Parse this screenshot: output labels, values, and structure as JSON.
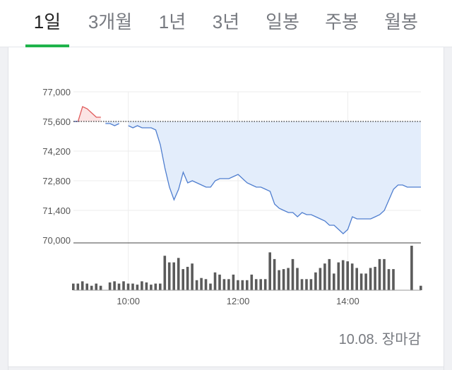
{
  "tabs": [
    {
      "label": "1일",
      "active": true
    },
    {
      "label": "3개월",
      "active": false
    },
    {
      "label": "1년",
      "active": false
    },
    {
      "label": "3년",
      "active": false
    },
    {
      "label": "일봉",
      "active": false
    },
    {
      "label": "주봉",
      "active": false
    },
    {
      "label": "월봉",
      "active": false
    }
  ],
  "footer": {
    "date": "10.08.",
    "status": "장마감"
  },
  "colors": {
    "accent": "#1fb34b",
    "up_line": "#e05a5a",
    "up_fill": "#fbe4e4",
    "down_line": "#4f7ecf",
    "down_fill": "#e3edfb",
    "volume": "#5b5b5b",
    "reference_line": "#333333"
  },
  "chart_data": {
    "type": "line",
    "price": {
      "y_ticks": [
        70000,
        71400,
        72800,
        74200,
        75600,
        77000
      ],
      "y_tick_labels": [
        "70,000",
        "71,400",
        "72,800",
        "74,200",
        "75,600",
        "77,000"
      ],
      "ylim": [
        70000,
        77000
      ],
      "reference_price": 75600,
      "x_ticks": [
        "10:00",
        "12:00",
        "14:00"
      ],
      "grid": true,
      "series": [
        [
          540,
          75600
        ],
        [
          545,
          75600
        ],
        [
          550,
          76300
        ],
        [
          555,
          76200
        ],
        [
          560,
          76000
        ],
        [
          565,
          75800
        ],
        [
          570,
          75800
        ],
        [
          575,
          75500
        ],
        [
          580,
          75500
        ],
        [
          585,
          75400
        ],
        [
          590,
          75500
        ],
        [
          595,
          75800
        ],
        [
          600,
          75400
        ],
        [
          605,
          75300
        ],
        [
          610,
          75400
        ],
        [
          615,
          75300
        ],
        [
          620,
          75300
        ],
        [
          625,
          75300
        ],
        [
          630,
          75200
        ],
        [
          635,
          74500
        ],
        [
          640,
          73400
        ],
        [
          645,
          72500
        ],
        [
          650,
          71900
        ],
        [
          655,
          72400
        ],
        [
          660,
          73200
        ],
        [
          665,
          72700
        ],
        [
          670,
          72800
        ],
        [
          675,
          72700
        ],
        [
          680,
          72600
        ],
        [
          685,
          72500
        ],
        [
          690,
          72500
        ],
        [
          695,
          72800
        ],
        [
          700,
          72900
        ],
        [
          705,
          72900
        ],
        [
          710,
          72900
        ],
        [
          715,
          73000
        ],
        [
          720,
          73100
        ],
        [
          725,
          72900
        ],
        [
          730,
          72700
        ],
        [
          735,
          72600
        ],
        [
          740,
          72500
        ],
        [
          745,
          72500
        ],
        [
          750,
          72400
        ],
        [
          755,
          72300
        ],
        [
          760,
          71700
        ],
        [
          765,
          71500
        ],
        [
          770,
          71400
        ],
        [
          775,
          71300
        ],
        [
          780,
          71300
        ],
        [
          785,
          71100
        ],
        [
          790,
          71300
        ],
        [
          795,
          71200
        ],
        [
          800,
          71200
        ],
        [
          805,
          71100
        ],
        [
          810,
          71000
        ],
        [
          815,
          70900
        ],
        [
          820,
          70700
        ],
        [
          825,
          70700
        ],
        [
          830,
          70500
        ],
        [
          835,
          70300
        ],
        [
          840,
          70500
        ],
        [
          845,
          71100
        ],
        [
          850,
          71000
        ],
        [
          855,
          71000
        ],
        [
          860,
          71000
        ],
        [
          865,
          71000
        ],
        [
          870,
          71100
        ],
        [
          875,
          71200
        ],
        [
          880,
          71400
        ],
        [
          885,
          71900
        ],
        [
          890,
          72400
        ],
        [
          895,
          72600
        ],
        [
          900,
          72600
        ],
        [
          905,
          72500
        ],
        [
          910,
          72500
        ],
        [
          915,
          72500
        ],
        [
          920,
          72500
        ]
      ]
    },
    "volume": {
      "x": [
        540,
        545,
        550,
        555,
        560,
        565,
        570,
        575,
        580,
        585,
        590,
        595,
        600,
        605,
        610,
        615,
        620,
        625,
        630,
        635,
        640,
        645,
        650,
        655,
        660,
        665,
        670,
        675,
        680,
        685,
        690,
        695,
        700,
        705,
        710,
        715,
        720,
        725,
        730,
        735,
        740,
        745,
        750,
        755,
        760,
        765,
        770,
        775,
        780,
        785,
        790,
        795,
        800,
        805,
        810,
        815,
        820,
        825,
        830,
        835,
        840,
        845,
        850,
        855,
        860,
        865,
        870,
        875,
        880,
        885,
        890,
        895,
        900,
        905,
        910,
        915,
        920
      ],
      "values": [
        12,
        12,
        16,
        12,
        8,
        12,
        8,
        0,
        14,
        16,
        12,
        16,
        12,
        12,
        10,
        16,
        14,
        10,
        12,
        12,
        62,
        50,
        50,
        58,
        38,
        42,
        48,
        18,
        22,
        20,
        12,
        32,
        28,
        20,
        20,
        28,
        18,
        18,
        18,
        28,
        20,
        20,
        20,
        68,
        56,
        36,
        38,
        40,
        56,
        40,
        20,
        20,
        20,
        32,
        40,
        48,
        56,
        30,
        50,
        54,
        52,
        48,
        40,
        30,
        30,
        40,
        42,
        56,
        56,
        38,
        38,
        0,
        0,
        0,
        80,
        0,
        8
      ],
      "ylim": [
        0,
        80
      ]
    }
  }
}
